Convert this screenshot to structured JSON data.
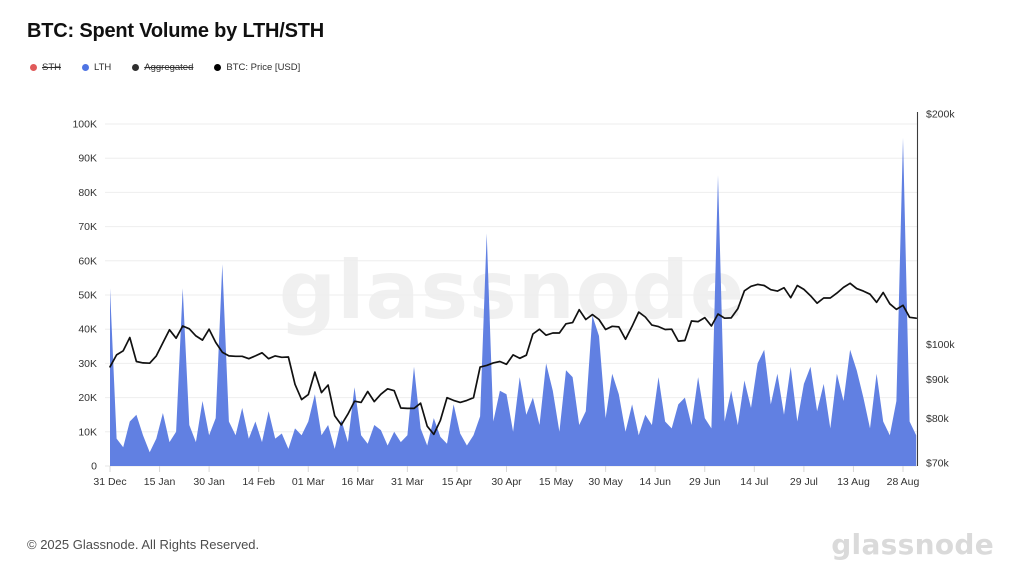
{
  "title": "BTC: Spent Volume by LTH/STH",
  "watermark": "glassnode",
  "legend": [
    {
      "label": "STH",
      "color": "#e05a5a",
      "disabled": true
    },
    {
      "label": "LTH",
      "color": "#4f74e3",
      "disabled": false
    },
    {
      "label": "Aggregated",
      "color": "#2f2f2f",
      "disabled": true
    },
    {
      "label": "BTC: Price [USD]",
      "color": "#000000",
      "disabled": false
    }
  ],
  "footer": {
    "copyright": "© 2025 Glassnode. All Rights Reserved.",
    "brand": "glassnode"
  },
  "chart_data": {
    "type": "area",
    "title": "BTC: Spent Volume by LTH/STH",
    "grid": "horizontal-only",
    "legend_position": "top-left",
    "start_label": "31 Dec",
    "sample_interval_days": 2,
    "x_tick_interval_days": 15,
    "x_tick_labels": [
      "31 Dec",
      "15 Jan",
      "30 Jan",
      "14 Feb",
      "01 Mar",
      "16 Mar",
      "31 Mar",
      "15 Apr",
      "30 Apr",
      "15 May",
      "30 May",
      "14 Jun",
      "29 Jun",
      "14 Jul",
      "29 Jul",
      "13 Aug",
      "28 Aug"
    ],
    "left_axis": {
      "unit": "BTC",
      "min": 0,
      "max": 100000,
      "scale": "linear",
      "ticks": [
        {
          "label": "0",
          "value": 0
        },
        {
          "label": "10K",
          "value": 10000
        },
        {
          "label": "20K",
          "value": 20000
        },
        {
          "label": "30K",
          "value": 30000
        },
        {
          "label": "40K",
          "value": 40000
        },
        {
          "label": "50K",
          "value": 50000
        },
        {
          "label": "60K",
          "value": 60000
        },
        {
          "label": "70K",
          "value": 70000
        },
        {
          "label": "80K",
          "value": 80000
        },
        {
          "label": "90K",
          "value": 90000
        },
        {
          "label": "100K",
          "value": 100000
        }
      ]
    },
    "right_axis": {
      "unit": "USD",
      "min": 70000,
      "max": 200000,
      "scale": "log",
      "ticks": [
        {
          "label": "$70k",
          "value": 70000
        },
        {
          "label": "$80k",
          "value": 80000
        },
        {
          "label": "$90k",
          "value": 90000
        },
        {
          "label": "$100k",
          "value": 100000
        },
        {
          "label": "$200k",
          "value": 200000
        }
      ]
    },
    "series": [
      {
        "name": "LTH",
        "type": "area",
        "axis": "left",
        "color": "#6180e2",
        "values": [
          52000,
          8000,
          5500,
          13000,
          15000,
          9000,
          4000,
          8000,
          15500,
          7000,
          10000,
          52000,
          12000,
          7000,
          19000,
          9000,
          14000,
          59000,
          13000,
          9000,
          17000,
          8000,
          13000,
          7000,
          16000,
          8000,
          9500,
          5000,
          11000,
          9000,
          13000,
          21000,
          9000,
          12000,
          5000,
          13500,
          7000,
          23000,
          9000,
          6500,
          12000,
          10500,
          6000,
          10000,
          7000,
          9000,
          29000,
          11000,
          6000,
          14000,
          8500,
          6500,
          18000,
          9500,
          6000,
          9000,
          14500,
          68000,
          13000,
          22000,
          21000,
          10000,
          26000,
          15000,
          20000,
          12000,
          30000,
          22000,
          10000,
          28000,
          26000,
          12000,
          16000,
          44000,
          38000,
          14000,
          27000,
          21000,
          10000,
          18000,
          9000,
          15000,
          12000,
          26000,
          13000,
          11000,
          18000,
          20000,
          12000,
          26000,
          14000,
          11000,
          85000,
          13000,
          22000,
          12000,
          25000,
          17000,
          30000,
          34000,
          18000,
          27000,
          15000,
          29000,
          13000,
          24000,
          29000,
          16000,
          24000,
          11000,
          27000,
          19000,
          34000,
          28000,
          20000,
          11000,
          27000,
          13000,
          9000,
          19000,
          96000,
          13000,
          9000
        ]
      },
      {
        "name": "BTC: Price [USD]",
        "type": "line",
        "axis": "right",
        "color": "#111111",
        "values": [
          93500,
          96900,
          98100,
          102100,
          95000,
          94600,
          94500,
          96600,
          100500,
          104500,
          101900,
          105700,
          104800,
          102600,
          101300,
          104700,
          100600,
          97700,
          96600,
          96500,
          96500,
          95800,
          96600,
          97500,
          95800,
          96600,
          96200,
          96300,
          88700,
          84700,
          86000,
          92000,
          86500,
          88500,
          80700,
          78500,
          81100,
          84300,
          84000,
          86800,
          84200,
          86100,
          87500,
          87000,
          82600,
          82500,
          82500,
          83800,
          78200,
          76300,
          79600,
          85200,
          84500,
          84000,
          84500,
          85200,
          93400,
          93900,
          94600,
          95000,
          94200,
          96900,
          95900,
          96800,
          103200,
          104700,
          102800,
          103500,
          103500,
          106400,
          106800,
          111000,
          107800,
          109400,
          107800,
          104600,
          105600,
          105400,
          101600,
          105600,
          110200,
          108600,
          106000,
          105500,
          104600,
          104700,
          101000,
          101200,
          107300,
          107100,
          108400,
          105700,
          109600,
          108200,
          108300,
          111300,
          117500,
          119100,
          119800,
          119400,
          117900,
          117400,
          118600,
          115100,
          119400,
          118000,
          115800,
          113200,
          115000,
          115000,
          116700,
          118700,
          120200,
          118300,
          117400,
          116300,
          113500,
          116900,
          113000,
          111100,
          112500,
          108500,
          108200
        ]
      }
    ]
  }
}
